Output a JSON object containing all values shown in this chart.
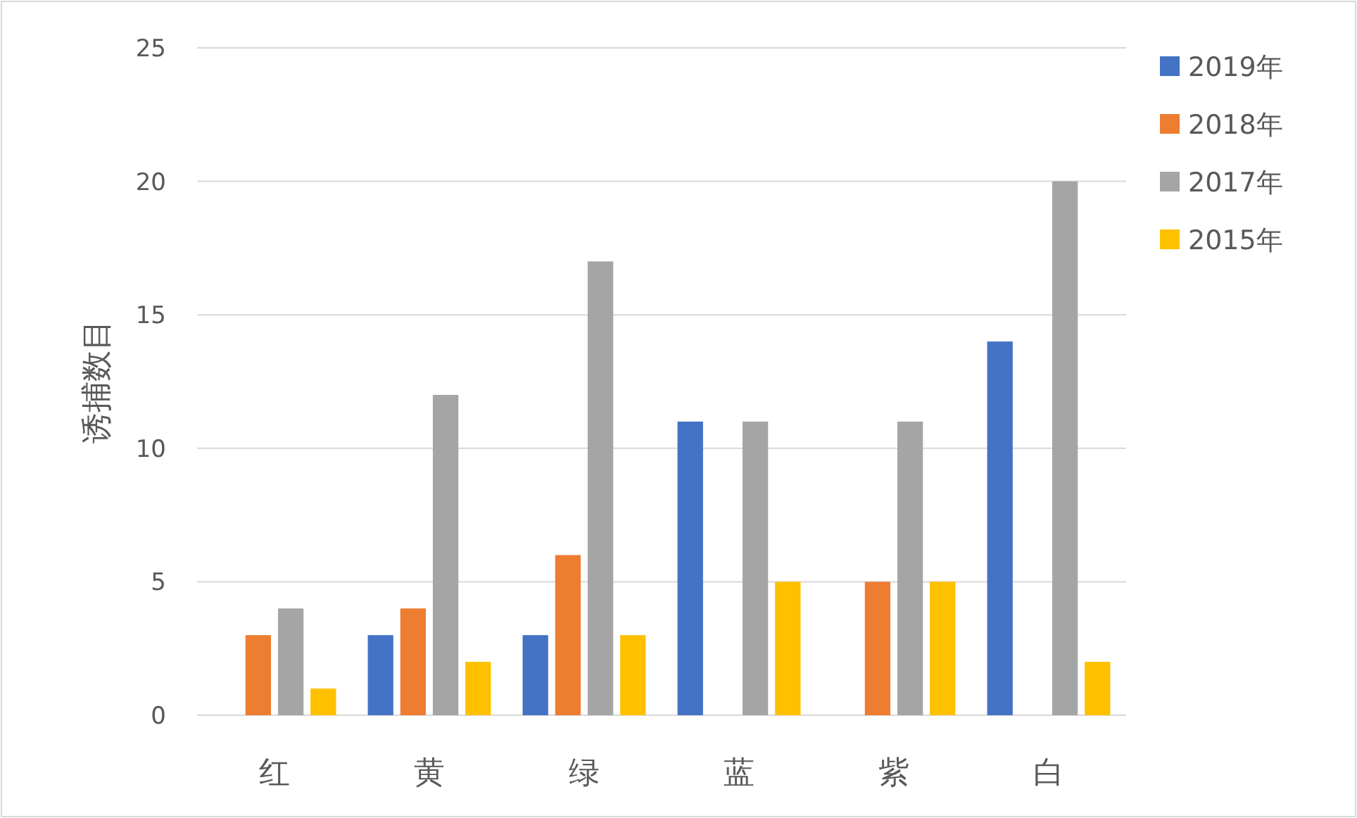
{
  "chart_data": {
    "type": "bar",
    "ylabel": "诱捕数目",
    "categories": [
      "红",
      "黄",
      "绿",
      "蓝",
      "紫",
      "白"
    ],
    "series": [
      {
        "name": "2019年",
        "color": "#4472c4",
        "values": [
          0,
          3,
          3,
          11,
          0,
          14
        ]
      },
      {
        "name": "2018年",
        "color": "#ed7d31",
        "values": [
          3,
          4,
          6,
          0,
          5,
          0
        ]
      },
      {
        "name": "2017年",
        "color": "#a5a5a5",
        "values": [
          4,
          12,
          17,
          11,
          11,
          20
        ]
      },
      {
        "name": "2015年",
        "color": "#ffc000",
        "values": [
          1,
          2,
          3,
          5,
          5,
          2
        ]
      }
    ],
    "ylim": [
      0,
      25
    ],
    "yticks": [
      0,
      5,
      10,
      15,
      20,
      25
    ],
    "grid": "y",
    "legend": "top right"
  }
}
